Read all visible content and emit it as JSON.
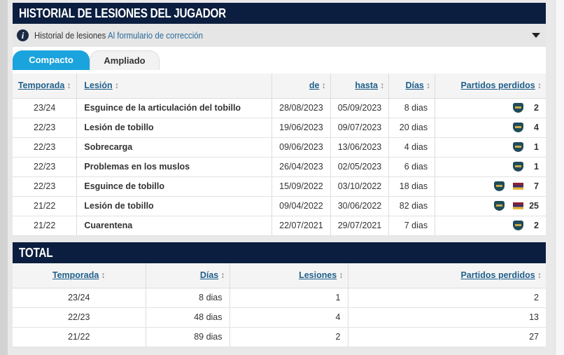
{
  "title": "HISTORIAL DE LESIONES DEL JUGADOR",
  "info": {
    "text": "Historial de lesiones",
    "link": "Al formulario de corrección"
  },
  "tabs": [
    {
      "label": "Compacto",
      "active": true
    },
    {
      "label": "Ampliado",
      "active": false
    }
  ],
  "columns": [
    "Temporada",
    "Lesión",
    "de",
    "hasta",
    "Días",
    "Partidos perdidos"
  ],
  "sort_icon": "↕",
  "rows": [
    {
      "season": "23/24",
      "injury": "Esguince de la articulación del tobillo",
      "from": "28/08/2023",
      "to": "05/09/2023",
      "days": "8 dias",
      "flag": false,
      "games": "2"
    },
    {
      "season": "22/23",
      "injury": "Lesión de tobillo",
      "from": "19/06/2023",
      "to": "09/07/2023",
      "days": "20 dias",
      "flag": false,
      "games": "4"
    },
    {
      "season": "22/23",
      "injury": "Sobrecarga",
      "from": "09/06/2023",
      "to": "13/06/2023",
      "days": "4 dias",
      "flag": false,
      "games": "1"
    },
    {
      "season": "22/23",
      "injury": "Problemas en los muslos",
      "from": "26/04/2023",
      "to": "02/05/2023",
      "days": "6 dias",
      "flag": false,
      "games": "1"
    },
    {
      "season": "22/23",
      "injury": "Esguince de tobillo",
      "from": "15/09/2022",
      "to": "03/10/2022",
      "days": "18 dias",
      "flag": true,
      "games": "7"
    },
    {
      "season": "21/22",
      "injury": "Lesión de tobillo",
      "from": "09/04/2022",
      "to": "30/06/2022",
      "days": "82 dias",
      "flag": true,
      "games": "25"
    },
    {
      "season": "21/22",
      "injury": "Cuarentena",
      "from": "22/07/2021",
      "to": "29/07/2021",
      "days": "7 dias",
      "flag": false,
      "games": "2"
    }
  ],
  "total": {
    "title": "TOTAL",
    "columns": [
      "Temporada",
      "Días",
      "Lesiones",
      "Partidos perdidos"
    ],
    "rows": [
      {
        "season": "23/24",
        "days": "8 dias",
        "injuries": "1",
        "games": "2"
      },
      {
        "season": "22/23",
        "days": "48 dias",
        "injuries": "4",
        "games": "13"
      },
      {
        "season": "21/22",
        "days": "89 dias",
        "injuries": "2",
        "games": "27"
      }
    ]
  },
  "colors": {
    "header": "#0b1e3f",
    "tab_active": "#1aa3dd",
    "link": "#1f5f8b"
  }
}
